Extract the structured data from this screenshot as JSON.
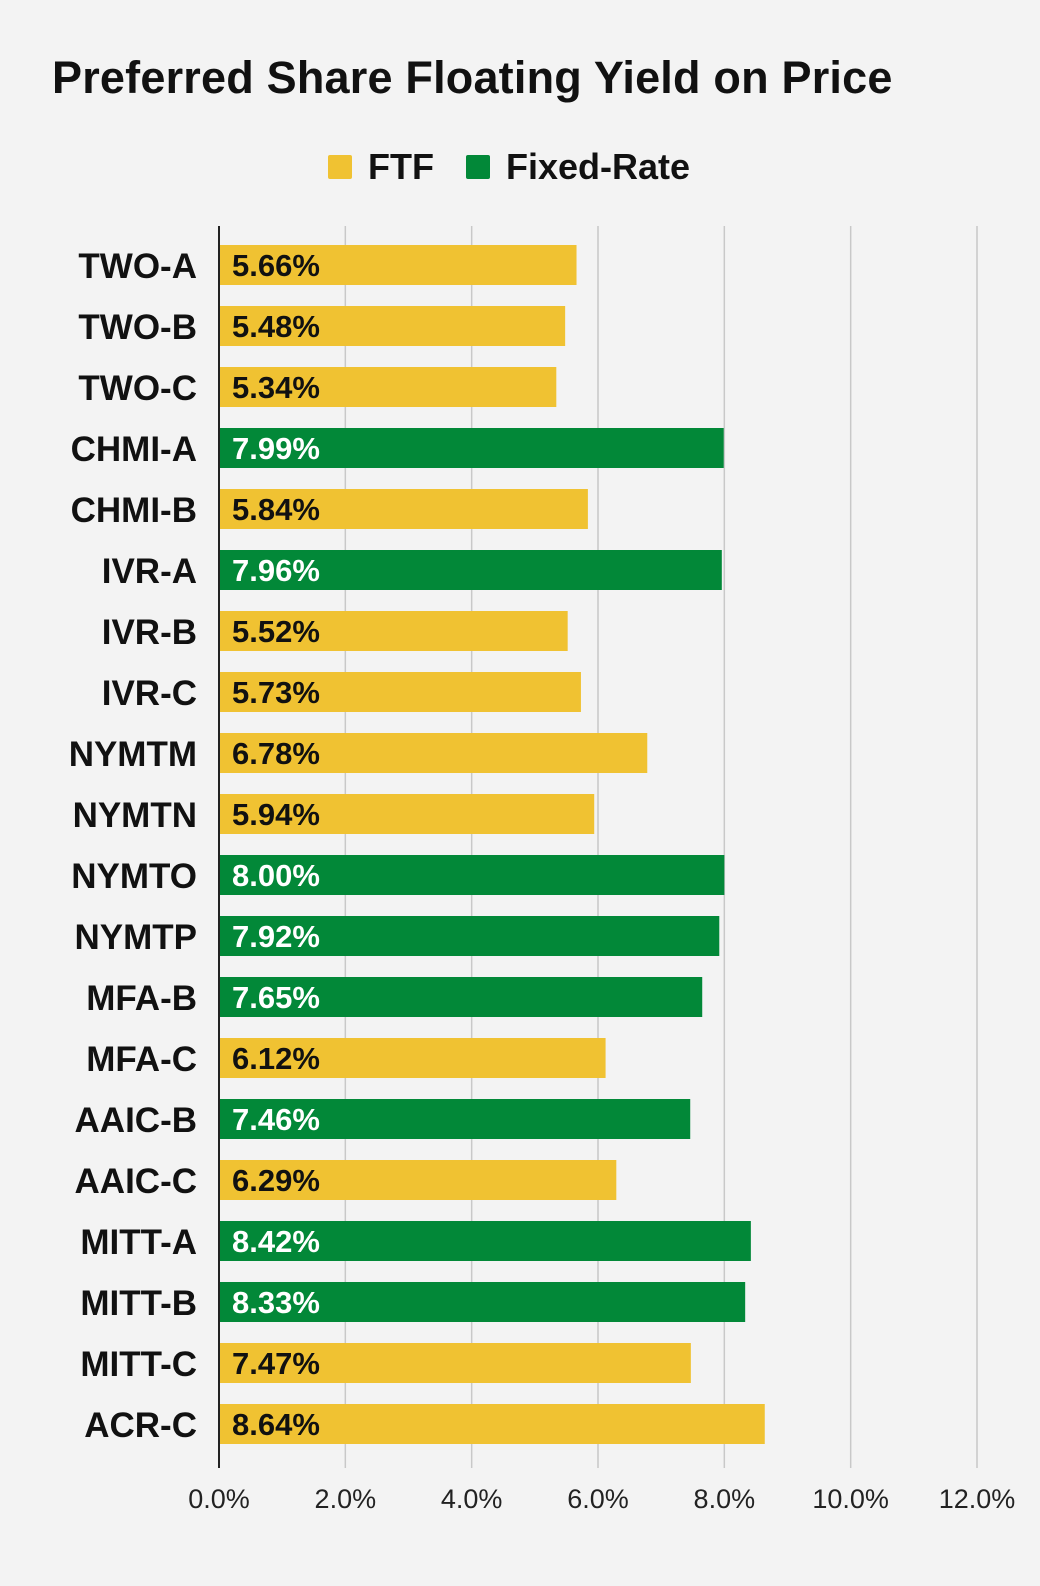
{
  "chart_data": {
    "type": "bar",
    "orientation": "horizontal",
    "title": "Preferred Share Floating Yield on Price",
    "xlabel": "",
    "ylabel": "",
    "xlim": [
      0,
      12
    ],
    "x_ticks": [
      "0.0%",
      "2.0%",
      "4.0%",
      "6.0%",
      "8.0%",
      "10.0%",
      "12.0%"
    ],
    "x_tick_values": [
      0,
      2,
      4,
      6,
      8,
      10,
      12
    ],
    "grid": "vertical",
    "legend_position": "top",
    "legend": [
      {
        "key": "FTF",
        "name": "FTF",
        "color": "#f0c232",
        "label_color": "#111111"
      },
      {
        "key": "Fixed-Rate",
        "name": "Fixed-Rate",
        "color": "#028838",
        "label_color": "#ffffff"
      }
    ],
    "categories": [
      "TWO-A",
      "TWO-B",
      "TWO-C",
      "CHMI-A",
      "CHMI-B",
      "IVR-A",
      "IVR-B",
      "IVR-C",
      "NYMTM",
      "NYMTN",
      "NYMTO",
      "NYMTP",
      "MFA-B",
      "MFA-C",
      "AAIC-B",
      "AAIC-C",
      "MITT-A",
      "MITT-B",
      "MITT-C",
      "ACR-C"
    ],
    "values": [
      5.66,
      5.48,
      5.34,
      7.99,
      5.84,
      7.96,
      5.52,
      5.73,
      6.78,
      5.94,
      8.0,
      7.92,
      7.65,
      6.12,
      7.46,
      6.29,
      8.42,
      8.33,
      7.47,
      8.64
    ],
    "value_labels": [
      "5.66%",
      "5.48%",
      "5.34%",
      "7.99%",
      "5.84%",
      "7.96%",
      "5.52%",
      "5.73%",
      "6.78%",
      "5.94%",
      "8.00%",
      "7.92%",
      "7.65%",
      "6.12%",
      "7.46%",
      "6.29%",
      "8.42%",
      "8.33%",
      "7.47%",
      "8.64%"
    ],
    "bar_series": [
      "FTF",
      "FTF",
      "FTF",
      "Fixed-Rate",
      "FTF",
      "Fixed-Rate",
      "FTF",
      "FTF",
      "FTF",
      "FTF",
      "Fixed-Rate",
      "Fixed-Rate",
      "Fixed-Rate",
      "FTF",
      "Fixed-Rate",
      "FTF",
      "Fixed-Rate",
      "Fixed-Rate",
      "FTF",
      "FTF"
    ]
  },
  "colors": {
    "background": "#f3f3f3",
    "grid": "#c8c8c8",
    "axis": "#222222"
  }
}
